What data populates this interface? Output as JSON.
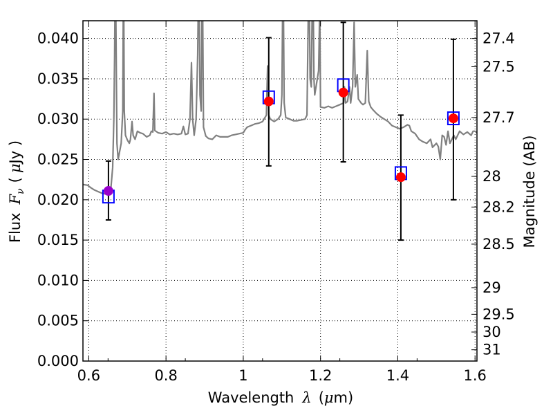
{
  "chart_data": {
    "type": "scatter",
    "xlabel_prefix": "Wavelength",
    "xlabel_symbol": "λ",
    "xlabel_unit_open": "(",
    "xlabel_unit_mu": "μ",
    "xlabel_unit_rest": "m)",
    "ylabel_prefix": "Flux",
    "ylabel_symbol": "F",
    "ylabel_sub": "ν",
    "ylabel_unit_open": "(",
    "ylabel_unit_mu": "μ",
    "ylabel_unit_rest": "Jy )",
    "y2label": "Magnitude (AB)",
    "xlim": [
      0.585,
      1.605
    ],
    "ylim": [
      0.0,
      0.0422
    ],
    "grid": true,
    "x_ticks": [
      0.6,
      0.8,
      1.0,
      1.2,
      1.4,
      1.6
    ],
    "x_tick_labels": [
      "0.6",
      "0.8",
      "1",
      "1.2",
      "1.4",
      "1.6"
    ],
    "y_ticks": [
      0.0,
      0.005,
      0.01,
      0.015,
      0.02,
      0.025,
      0.03,
      0.035,
      0.04
    ],
    "y_tick_labels": [
      "0.000",
      "0.005",
      "0.010",
      "0.015",
      "0.020",
      "0.025",
      "0.030",
      "0.035",
      "0.040"
    ],
    "y2_ticks": [
      {
        "label": "27.4",
        "flux": 0.04
      },
      {
        "label": "27.5",
        "flux": 0.0365
      },
      {
        "label": "27.7",
        "flux": 0.0302
      },
      {
        "label": "28",
        "flux": 0.0229
      },
      {
        "label": "28.2",
        "flux": 0.0191
      },
      {
        "label": "28.5",
        "flux": 0.0145
      },
      {
        "label": "29",
        "flux": 0.0091
      },
      {
        "label": "29.5",
        "flux": 0.0058
      },
      {
        "label": "30",
        "flux": 0.0036
      },
      {
        "label": "31",
        "flux": 0.0014
      }
    ],
    "series": [
      {
        "kind": "spectrum",
        "color": "#808080",
        "points": [
          [
            0.585,
            0.0219
          ],
          [
            0.597,
            0.0218
          ],
          [
            0.605,
            0.0215
          ],
          [
            0.615,
            0.0212
          ],
          [
            0.625,
            0.021
          ],
          [
            0.635,
            0.0208
          ],
          [
            0.645,
            0.0207
          ],
          [
            0.652,
            0.0207
          ],
          [
            0.657,
            0.0212
          ],
          [
            0.662,
            0.024
          ],
          [
            0.665,
            0.03
          ],
          [
            0.667,
            0.038
          ],
          [
            0.669,
            0.05
          ],
          [
            0.671,
            0.038
          ],
          [
            0.673,
            0.027
          ],
          [
            0.676,
            0.025
          ],
          [
            0.68,
            0.026
          ],
          [
            0.684,
            0.027
          ],
          [
            0.688,
            0.031
          ],
          [
            0.69,
            0.05
          ],
          [
            0.692,
            0.031
          ],
          [
            0.695,
            0.028
          ],
          [
            0.7,
            0.0274
          ],
          [
            0.705,
            0.027
          ],
          [
            0.708,
            0.0275
          ],
          [
            0.712,
            0.0297
          ],
          [
            0.715,
            0.028
          ],
          [
            0.72,
            0.0275
          ],
          [
            0.726,
            0.0285
          ],
          [
            0.733,
            0.0283
          ],
          [
            0.74,
            0.0282
          ],
          [
            0.75,
            0.0278
          ],
          [
            0.758,
            0.028
          ],
          [
            0.762,
            0.0285
          ],
          [
            0.766,
            0.0284
          ],
          [
            0.769,
            0.0332
          ],
          [
            0.771,
            0.0286
          ],
          [
            0.78,
            0.0283
          ],
          [
            0.79,
            0.0282
          ],
          [
            0.8,
            0.0284
          ],
          [
            0.81,
            0.0281
          ],
          [
            0.82,
            0.0282
          ],
          [
            0.83,
            0.0281
          ],
          [
            0.84,
            0.0282
          ],
          [
            0.845,
            0.0291
          ],
          [
            0.85,
            0.0281
          ],
          [
            0.857,
            0.0282
          ],
          [
            0.862,
            0.03
          ],
          [
            0.866,
            0.037
          ],
          [
            0.869,
            0.03
          ],
          [
            0.873,
            0.028
          ],
          [
            0.878,
            0.03
          ],
          [
            0.882,
            0.038
          ],
          [
            0.885,
            0.05
          ],
          [
            0.888,
            0.033
          ],
          [
            0.891,
            0.031
          ],
          [
            0.894,
            0.05
          ],
          [
            0.897,
            0.029
          ],
          [
            0.903,
            0.0279
          ],
          [
            0.91,
            0.0276
          ],
          [
            0.92,
            0.0275
          ],
          [
            0.93,
            0.028
          ],
          [
            0.94,
            0.0278
          ],
          [
            0.95,
            0.0278
          ],
          [
            0.96,
            0.0278
          ],
          [
            0.97,
            0.028
          ],
          [
            0.98,
            0.0281
          ],
          [
            0.99,
            0.0282
          ],
          [
            1.0,
            0.0283
          ],
          [
            1.005,
            0.0287
          ],
          [
            1.01,
            0.029
          ],
          [
            1.02,
            0.0292
          ],
          [
            1.03,
            0.0294
          ],
          [
            1.04,
            0.0295
          ],
          [
            1.05,
            0.0297
          ],
          [
            1.06,
            0.0305
          ],
          [
            1.063,
            0.0366
          ],
          [
            1.066,
            0.0305
          ],
          [
            1.07,
            0.03
          ],
          [
            1.08,
            0.0297
          ],
          [
            1.09,
            0.03
          ],
          [
            1.097,
            0.0305
          ],
          [
            1.1,
            0.033
          ],
          [
            1.103,
            0.05
          ],
          [
            1.106,
            0.032
          ],
          [
            1.11,
            0.0302
          ],
          [
            1.12,
            0.03
          ],
          [
            1.13,
            0.0298
          ],
          [
            1.14,
            0.0298
          ],
          [
            1.15,
            0.0299
          ],
          [
            1.16,
            0.03
          ],
          [
            1.165,
            0.0305
          ],
          [
            1.168,
            0.042
          ],
          [
            1.17,
            0.05
          ],
          [
            1.173,
            0.035
          ],
          [
            1.176,
            0.034
          ],
          [
            1.18,
            0.05
          ],
          [
            1.183,
            0.035
          ],
          [
            1.185,
            0.033
          ],
          [
            1.19,
            0.0345
          ],
          [
            1.195,
            0.036
          ],
          [
            1.198,
            0.044
          ],
          [
            1.2,
            0.0315
          ],
          [
            1.21,
            0.0314
          ],
          [
            1.22,
            0.0316
          ],
          [
            1.23,
            0.0314
          ],
          [
            1.24,
            0.0316
          ],
          [
            1.25,
            0.0318
          ],
          [
            1.26,
            0.032
          ],
          [
            1.262,
            0.034
          ],
          [
            1.265,
            0.032
          ],
          [
            1.27,
            0.0322
          ],
          [
            1.275,
            0.034
          ],
          [
            1.278,
            0.032
          ],
          [
            1.283,
            0.034
          ],
          [
            1.287,
            0.042
          ],
          [
            1.29,
            0.034
          ],
          [
            1.295,
            0.0355
          ],
          [
            1.298,
            0.0325
          ],
          [
            1.305,
            0.032
          ],
          [
            1.31,
            0.0318
          ],
          [
            1.316,
            0.032
          ],
          [
            1.321,
            0.0385
          ],
          [
            1.325,
            0.0322
          ],
          [
            1.33,
            0.0315
          ],
          [
            1.335,
            0.0312
          ],
          [
            1.345,
            0.0307
          ],
          [
            1.355,
            0.0303
          ],
          [
            1.365,
            0.03
          ],
          [
            1.375,
            0.0297
          ],
          [
            1.385,
            0.0292
          ],
          [
            1.395,
            0.029
          ],
          [
            1.405,
            0.0288
          ],
          [
            1.415,
            0.029
          ],
          [
            1.425,
            0.0293
          ],
          [
            1.43,
            0.0292
          ],
          [
            1.435,
            0.0285
          ],
          [
            1.445,
            0.0282
          ],
          [
            1.455,
            0.0275
          ],
          [
            1.465,
            0.0272
          ],
          [
            1.475,
            0.027
          ],
          [
            1.485,
            0.0275
          ],
          [
            1.49,
            0.0265
          ],
          [
            1.5,
            0.027
          ],
          [
            1.505,
            0.0266
          ],
          [
            1.51,
            0.025
          ],
          [
            1.515,
            0.028
          ],
          [
            1.52,
            0.0278
          ],
          [
            1.525,
            0.0268
          ],
          [
            1.53,
            0.0285
          ],
          [
            1.535,
            0.027
          ],
          [
            1.54,
            0.0275
          ],
          [
            1.545,
            0.028
          ],
          [
            1.55,
            0.0275
          ],
          [
            1.56,
            0.0285
          ],
          [
            1.565,
            0.0283
          ],
          [
            1.57,
            0.0281
          ],
          [
            1.58,
            0.0284
          ],
          [
            1.59,
            0.028
          ],
          [
            1.595,
            0.0285
          ],
          [
            1.6,
            0.0285
          ],
          [
            1.605,
            0.0283
          ]
        ]
      },
      {
        "kind": "model",
        "marker": "square",
        "color": "#0000ff",
        "points": [
          [
            0.651,
            0.0204
          ],
          [
            1.066,
            0.0327
          ],
          [
            1.259,
            0.0342
          ],
          [
            1.408,
            0.0233
          ],
          [
            1.544,
            0.0301
          ]
        ]
      },
      {
        "kind": "observed",
        "marker": "circle",
        "color": "#ff0000",
        "points": [
          {
            "x": 1.066,
            "y": 0.0322,
            "ylo": 0.0242,
            "yhi": 0.0401
          },
          {
            "x": 1.259,
            "y": 0.0333,
            "ylo": 0.0247,
            "yhi": 0.042
          },
          {
            "x": 1.408,
            "y": 0.0228,
            "ylo": 0.015,
            "yhi": 0.0305
          },
          {
            "x": 1.544,
            "y": 0.0301,
            "ylo": 0.02,
            "yhi": 0.0399
          }
        ]
      },
      {
        "kind": "observed-short",
        "marker": "circle",
        "color": "#9900cc",
        "points": [
          {
            "x": 0.651,
            "y": 0.0211,
            "ylo": 0.0175,
            "yhi": 0.0248
          }
        ]
      }
    ]
  }
}
